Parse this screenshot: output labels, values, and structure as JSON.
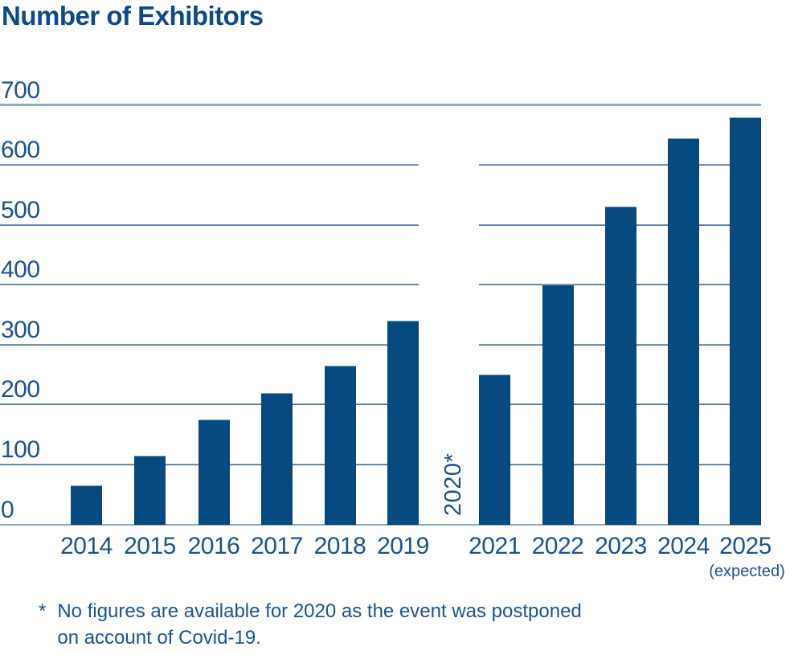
{
  "page": {
    "background": "#ffffff"
  },
  "chart_data": {
    "type": "bar",
    "title": "Number of Exhibitors",
    "categories": [
      "2014",
      "2015",
      "2016",
      "2017",
      "2018",
      "2019",
      "2020",
      "2021",
      "2022",
      "2023",
      "2024",
      "2025"
    ],
    "values": [
      65,
      115,
      175,
      220,
      265,
      340,
      null,
      250,
      400,
      530,
      645,
      680
    ],
    "gap_category": "2020",
    "gap_label": "2020*",
    "expected_category": "2025",
    "expected_label": "(expected)",
    "ylim": [
      0,
      700
    ],
    "ytick_interval": 100,
    "yticks": [
      0,
      100,
      200,
      300,
      400,
      500,
      600,
      700
    ],
    "grid": true,
    "legend": false,
    "bar_color": "#05497f",
    "grid_color": "#2f6397",
    "axis_line_color": "#8caac9",
    "text_color": "#1d5391",
    "title_color": "#0f4a86"
  },
  "footnote": {
    "marker": "*",
    "line1": "No figures are available for 2020 as the event was postponed",
    "line2": "on account of Covid-19."
  }
}
